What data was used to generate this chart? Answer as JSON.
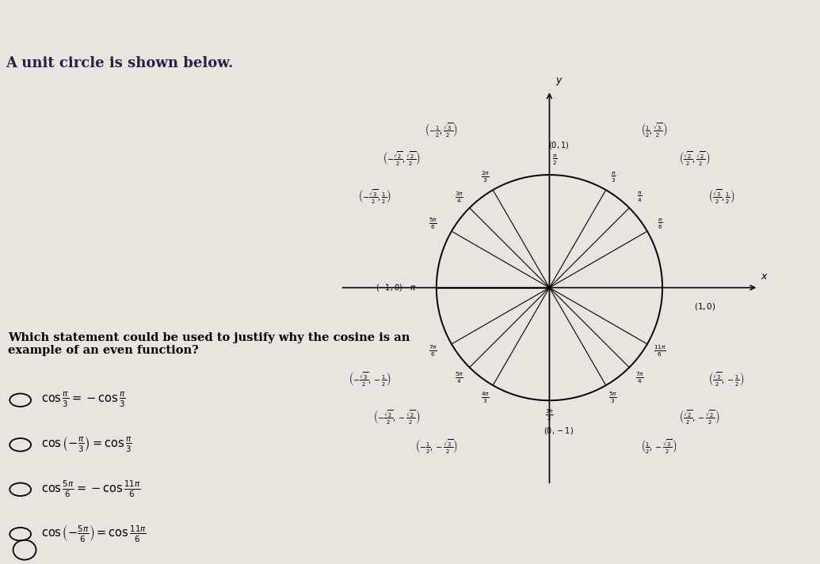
{
  "bg_color": "#e8e4de",
  "title_text": "A unit circle is shown below.",
  "title_bar_color": "#3355bb",
  "question_text": "Which statement could be used to justify why the cosine is an example of an even function?",
  "options": [
    "$\\cos \\frac{\\pi}{3} = -\\cos \\frac{\\pi}{3}$",
    "$\\cos \\left(-\\frac{\\pi}{3}\\right) = \\cos \\frac{\\pi}{3}$",
    "$\\cos \\frac{5\\pi}{6} = -\\cos \\frac{11\\pi}{6}$",
    "$\\cos \\left(-\\frac{5\\pi}{6}\\right) = \\cos \\frac{11\\pi}{6}$"
  ],
  "angle_label_r": 1.13,
  "coord_label_r": 1.52,
  "angles_deg": [
    30,
    45,
    60,
    90,
    120,
    135,
    150,
    180,
    210,
    225,
    240,
    270,
    300,
    315,
    330
  ],
  "angle_labels_tex": [
    "$\\frac{\\pi}{6}$",
    "$\\frac{\\pi}{4}$",
    "$\\frac{\\pi}{3}$",
    "$\\frac{\\pi}{2}$",
    "$\\frac{2\\pi}{3}$",
    "$\\frac{3\\pi}{4}$",
    "$\\frac{5\\pi}{6}$",
    "$\\pi$",
    "$\\frac{7\\pi}{6}$",
    "$\\frac{5\\pi}{4}$",
    "$\\frac{4\\pi}{3}$",
    "$\\frac{3\\pi}{2}$",
    "$\\frac{5\\pi}{3}$",
    "$\\frac{7\\pi}{4}$",
    "$\\frac{11\\pi}{6}$"
  ],
  "coord_labels_tex": [
    "$\\left(\\frac{\\sqrt{3}}{2}, \\frac{1}{2}\\right)$",
    "$\\left(\\frac{\\sqrt{2}}{2}, \\frac{\\sqrt{2}}{2}\\right)$",
    "$\\left(\\frac{1}{2}, \\frac{\\sqrt{3}}{2}\\right)$",
    "$(0, 1)$",
    "$\\left(-\\frac{1}{2}, \\frac{\\sqrt{3}}{2}\\right)$",
    "$\\left(-\\frac{\\sqrt{2}}{2}, \\frac{\\sqrt{2}}{2}\\right)$",
    "$\\left(-\\frac{\\sqrt{3}}{2}, \\frac{1}{2}\\right)$",
    "$(-1, 0)$",
    "$\\left(-\\frac{\\sqrt{3}}{2}, -\\frac{1}{2}\\right)$",
    "$\\left(-\\frac{\\sqrt{2}}{2}, -\\frac{\\sqrt{2}}{2}\\right)$",
    "$\\left(-\\frac{1}{2}, -\\frac{\\sqrt{3}}{2}\\right)$",
    "$(0, -1)$",
    "$\\left(\\frac{1}{2}, -\\frac{\\sqrt{3}}{2}\\right)$",
    "$\\left(\\frac{\\sqrt{2}}{2}, -\\frac{\\sqrt{2}}{2}\\right)$",
    "$\\left(\\frac{\\sqrt{3}}{2}, -\\frac{1}{2}\\right)$"
  ]
}
